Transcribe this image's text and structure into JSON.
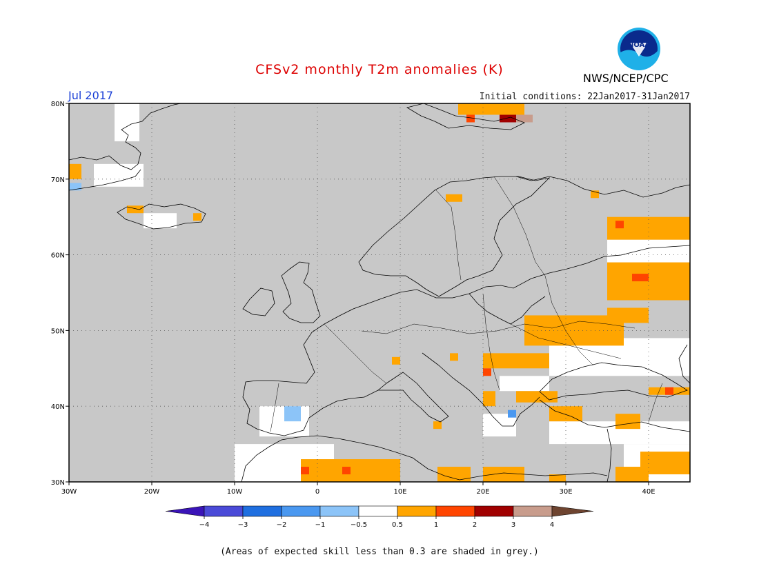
{
  "title": "CFSv2 monthly T2m anomalies (K)",
  "month": "Jul 2017",
  "initial_conditions": "Initial conditions: 22Jan2017-31Jan2017",
  "agency": "NWS/NCEP/CPC",
  "logo_text": "NOAA",
  "skill_note": "(Areas of expected skill less than 0.3 are shaded in grey.)",
  "colors": {
    "title": "#dd0000",
    "month": "#1a3fd6",
    "grey_low_skill": "#c8c8c8",
    "near_zero": "#ffffff",
    "ocean_outline": "#000000"
  },
  "map": {
    "lon_range": [
      -30,
      45
    ],
    "lat_range": [
      30,
      80
    ],
    "lat_ticks": [
      "80N",
      "70N",
      "60N",
      "50N",
      "40N",
      "30N"
    ],
    "lon_ticks": [
      "30W",
      "20W",
      "10W",
      "0",
      "10E",
      "20E",
      "30E",
      "40E"
    ],
    "gridlines": "dotted",
    "anomaly_cells": [
      {
        "lon": -30,
        "lat": 70,
        "w": 1.5,
        "h": 2,
        "v": 0.8
      },
      {
        "lon": -30,
        "lat": 68.5,
        "w": 1.5,
        "h": 1,
        "v": -0.8
      },
      {
        "lon": -23,
        "lat": 65.5,
        "w": 2,
        "h": 1,
        "v": 0.8
      },
      {
        "lon": -15,
        "lat": 64.5,
        "w": 1,
        "h": 1,
        "v": 0.8
      },
      {
        "lon": 15.5,
        "lat": 67,
        "w": 2,
        "h": 1,
        "v": 0.8
      },
      {
        "lon": 33,
        "lat": 67.5,
        "w": 1,
        "h": 1,
        "v": 0.8
      },
      {
        "lon": 17,
        "lat": 78.5,
        "w": 8,
        "h": 1.5,
        "v": 0.8
      },
      {
        "lon": 18,
        "lat": 77.5,
        "w": 1,
        "h": 1,
        "v": 1.5
      },
      {
        "lon": 22,
        "lat": 77.5,
        "w": 2,
        "h": 1,
        "v": 2.5
      },
      {
        "lon": 24,
        "lat": 77.5,
        "w": 2,
        "h": 1,
        "v": 3.5
      },
      {
        "lon": 35,
        "lat": 62,
        "w": 10,
        "h": 3,
        "v": 0.8
      },
      {
        "lon": 35,
        "lat": 54,
        "w": 10,
        "h": 5,
        "v": 0.8
      },
      {
        "lon": 36,
        "lat": 63.5,
        "w": 1,
        "h": 1,
        "v": 1.5
      },
      {
        "lon": 38,
        "lat": 56.5,
        "w": 2,
        "h": 1,
        "v": 1.5
      },
      {
        "lon": 25,
        "lat": 48,
        "w": 12,
        "h": 4,
        "v": 0.8
      },
      {
        "lon": 35,
        "lat": 51,
        "w": 5,
        "h": 2,
        "v": 0.8
      },
      {
        "lon": 20,
        "lat": 45,
        "w": 8,
        "h": 2,
        "v": 0.8
      },
      {
        "lon": 20,
        "lat": 44,
        "w": 1,
        "h": 1,
        "v": 1.5
      },
      {
        "lon": 20,
        "lat": 40,
        "w": 1.5,
        "h": 2,
        "v": 0.8
      },
      {
        "lon": 24,
        "lat": 40.5,
        "w": 5,
        "h": 1.5,
        "v": 0.8
      },
      {
        "lon": 28,
        "lat": 38,
        "w": 4,
        "h": 2,
        "v": 0.8
      },
      {
        "lon": 36,
        "lat": 37,
        "w": 3,
        "h": 2,
        "v": 0.8
      },
      {
        "lon": 40,
        "lat": 41.5,
        "w": 5,
        "h": 1,
        "v": 0.8
      },
      {
        "lon": 42,
        "lat": 41.5,
        "w": 1,
        "h": 1,
        "v": 1.5
      },
      {
        "lon": 39,
        "lat": 31,
        "w": 6,
        "h": 3,
        "v": 0.8
      },
      {
        "lon": 36,
        "lat": 30,
        "w": 4,
        "h": 2,
        "v": 0.8
      },
      {
        "lon": -2,
        "lat": 30,
        "w": 12,
        "h": 3,
        "v": 0.8
      },
      {
        "lon": -2,
        "lat": 31,
        "w": 1,
        "h": 1,
        "v": 1.5
      },
      {
        "lon": 3,
        "lat": 31,
        "w": 1,
        "h": 1,
        "v": 1.5
      },
      {
        "lon": 14.5,
        "lat": 30,
        "w": 4,
        "h": 2,
        "v": 0.8
      },
      {
        "lon": 20,
        "lat": 30,
        "w": 5,
        "h": 2,
        "v": 0.8
      },
      {
        "lon": 28,
        "lat": 30,
        "w": 2,
        "h": 1,
        "v": 0.8
      },
      {
        "lon": 9,
        "lat": 45.5,
        "w": 1,
        "h": 1,
        "v": 0.8
      },
      {
        "lon": 16,
        "lat": 46,
        "w": 1,
        "h": 1,
        "v": 0.8
      },
      {
        "lon": 14,
        "lat": 37,
        "w": 1,
        "h": 1,
        "v": 0.8
      },
      {
        "lon": -4,
        "lat": 38,
        "w": 2,
        "h": 2,
        "v": -0.8
      },
      {
        "lon": 23,
        "lat": 38.5,
        "w": 1,
        "h": 1,
        "v": -1.5
      }
    ],
    "near_zero_cells": [
      {
        "lon": -24.5,
        "lat": 75,
        "w": 3,
        "h": 5
      },
      {
        "lon": -27,
        "lat": 69,
        "w": 6,
        "h": 3
      },
      {
        "lon": -21,
        "lat": 63.5,
        "w": 4,
        "h": 2
      },
      {
        "lon": 35,
        "lat": 59,
        "w": 10,
        "h": 3
      },
      {
        "lon": 28,
        "lat": 44,
        "w": 17,
        "h": 5
      },
      {
        "lon": 22,
        "lat": 42,
        "w": 6,
        "h": 2
      },
      {
        "lon": 28,
        "lat": 35,
        "w": 17,
        "h": 3
      },
      {
        "lon": 37,
        "lat": 30,
        "w": 8,
        "h": 5
      },
      {
        "lon": -7,
        "lat": 36,
        "w": 6,
        "h": 4
      },
      {
        "lon": -10,
        "lat": 30,
        "w": 12,
        "h": 5
      },
      {
        "lon": 20,
        "lat": 36,
        "w": 4,
        "h": 3
      }
    ]
  },
  "colorbar": {
    "labels": [
      "−4",
      "−3",
      "−2",
      "−1",
      "−0.5",
      "0.5",
      "1",
      "2",
      "3",
      "4"
    ],
    "colors": [
      "#3a14b8",
      "#4a4ad8",
      "#1f6fe0",
      "#4a98f0",
      "#8cc4f8",
      "#ffffff",
      "#ffa500",
      "#ff4500",
      "#a00000",
      "#c89c8c",
      "#6e4430"
    ]
  }
}
